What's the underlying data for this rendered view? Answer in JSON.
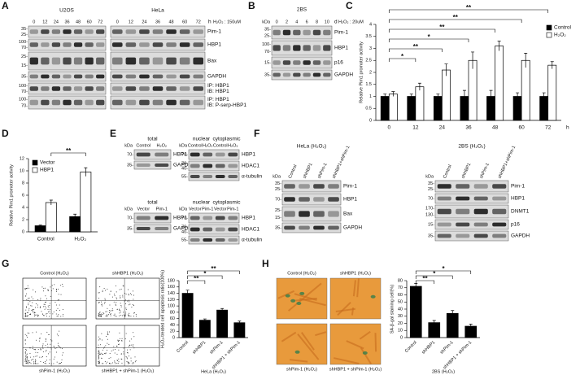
{
  "panel_labels": [
    "A",
    "B",
    "C",
    "D",
    "E",
    "F",
    "G",
    "H"
  ],
  "blots": {
    "A": {
      "unit": "h",
      "treatment": "H₂O₂ : 150uM",
      "groups": [
        {
          "name": "U2OS",
          "lanes": [
            "0",
            "12",
            "24",
            "36",
            "48",
            "60",
            "72"
          ]
        },
        {
          "name": "HeLa",
          "lanes": [
            "0",
            "12",
            "24",
            "36",
            "48",
            "60",
            "72"
          ]
        }
      ],
      "rows": [
        {
          "label": [
            "Pim-1"
          ],
          "kda": [
            "35-",
            "25-"
          ]
        },
        {
          "label": [
            "HBP1"
          ],
          "kda": [
            "100-",
            "70-"
          ]
        },
        {
          "label": [
            "Bax"
          ],
          "kda": [
            "25-",
            "15-"
          ]
        },
        {
          "label": [
            "GAPDH"
          ],
          "kda": [
            "35-"
          ]
        },
        {
          "label": [
            "IP: HBP1",
            "IB: HBP1"
          ],
          "kda": [
            "100-",
            "70-"
          ]
        },
        {
          "label": [
            "IP: HBP1",
            "IB: P-serp-HBP1"
          ],
          "kda": [
            "100-",
            "70-"
          ]
        }
      ]
    },
    "B": {
      "header": "2BS",
      "kda_label": "kDa",
      "unit": "d",
      "treatment": "H₂O₂ : 20uM",
      "lanes": [
        "0",
        "2",
        "4",
        "6",
        "8",
        "10"
      ],
      "rows": [
        {
          "label": [
            "Pim-1"
          ],
          "kda": [
            "35-",
            "25-"
          ]
        },
        {
          "label": [
            "HBP1"
          ],
          "kda": [
            "100-",
            "70-"
          ]
        },
        {
          "label": [
            "p16"
          ],
          "kda": [
            "15-"
          ]
        },
        {
          "label": [
            "GAPDH"
          ],
          "kda": [
            "35-"
          ]
        }
      ]
    },
    "E": [
      {
        "header": "total",
        "kda_label": "kDa",
        "lanes": [
          "Control",
          "H₂O₂"
        ],
        "rows": [
          {
            "label": [
              "HBP1"
            ],
            "kda": [
              "70-"
            ]
          },
          {
            "label": [
              "GAPDH"
            ],
            "kda": [
              "35-"
            ]
          }
        ]
      },
      {
        "headers": [
          "nuclear",
          "cytoplasmic"
        ],
        "kda_label": "kDa",
        "lanes": [
          "Control",
          "H₂O₂",
          "Control",
          "H₂O₂"
        ],
        "rows": [
          {
            "label": [
              "HBP1"
            ],
            "kda": [
              "70-"
            ]
          },
          {
            "label": [
              "HDAC1"
            ],
            "kda": [
              "70-",
              "40-"
            ]
          },
          {
            "label": [
              "α-tubulin"
            ],
            "kda": [
              "55-"
            ]
          }
        ]
      },
      {
        "header": "total",
        "kda_label": "kDa",
        "lanes": [
          "Vector",
          "Pim-1"
        ],
        "rows": [
          {
            "label": [
              "HBP1"
            ],
            "kda": [
              "70-"
            ]
          },
          {
            "label": [
              "GAPDH"
            ],
            "kda": [
              "35-"
            ]
          }
        ]
      },
      {
        "headers": [
          "nuclear",
          "cytoplasmic"
        ],
        "kda_label": "kDa",
        "lanes": [
          "Vector",
          "Pim-1",
          "Vector",
          "Pim-1"
        ],
        "rows": [
          {
            "label": [
              "HBP1"
            ],
            "kda": [
              "70-"
            ]
          },
          {
            "label": [
              "HDAC1"
            ],
            "kda": [
              "70-",
              "40-"
            ]
          },
          {
            "label": [
              "α-tubulin"
            ],
            "kda": [
              "55-"
            ]
          }
        ]
      }
    ],
    "F": [
      {
        "header": "HeLa (H₂O₂)",
        "kda_label": "kDa",
        "lanes": [
          "Control",
          "shHBP1",
          "shPim-1",
          "shHBP1+shPim-1"
        ],
        "rows": [
          {
            "label": [
              "Pim-1"
            ],
            "kda": [
              "35-",
              "25-"
            ]
          },
          {
            "label": [
              "HBP1"
            ],
            "kda": [
              "70-"
            ]
          },
          {
            "label": [
              "Bax"
            ],
            "kda": [
              "25-",
              "15-"
            ]
          },
          {
            "label": [
              "GAPDH"
            ],
            "kda": [
              "35-"
            ]
          }
        ]
      },
      {
        "header": "2BS (H₂O₂)",
        "kda_label": "kDa",
        "lanes": [
          "Control",
          "shHBP1",
          "shPim-1",
          "shHBP1+shPim-1"
        ],
        "rows": [
          {
            "label": [
              "Pim-1"
            ],
            "kda": [
              "35-",
              "25-"
            ]
          },
          {
            "label": [
              "HBP1"
            ],
            "kda": [
              "70-"
            ]
          },
          {
            "label": [
              "DNMT1"
            ],
            "kda": [
              "170-",
              "130-"
            ]
          },
          {
            "label": [
              "p16"
            ],
            "kda": [
              "15-"
            ]
          },
          {
            "label": [
              "GAPDH"
            ],
            "kda": [
              "35-"
            ]
          }
        ]
      }
    ]
  },
  "flow": {
    "titles": [
      "Control (H₂O₂)",
      "shHBP1 (H₂O₂)",
      "shPim-1 (H₂O₂)",
      "shHBP1 + shPim-1 (H₂O₂)"
    ]
  },
  "microscopy": {
    "titles": [
      "Control (H₂O₂)",
      "shHBP1 (H₂O₂)",
      "shPim-1 (H₂O₂)",
      "shHBP1 + shPim-1 (H₂O₂)"
    ]
  },
  "chart_data": [
    {
      "type": "bar",
      "ylabel": "Relative Pim1 promoter activity",
      "categories": [
        "0",
        "12",
        "24",
        "36",
        "48",
        "60",
        "72"
      ],
      "x_unit": "h",
      "series": [
        {
          "name": "Control",
          "color": "#000000",
          "values": [
            1,
            1,
            1,
            1,
            1,
            1,
            1
          ],
          "errors": [
            0.1,
            0.1,
            0.1,
            0.25,
            0.25,
            0.15,
            0.15
          ]
        },
        {
          "name": "H₂O₂",
          "color": "#ffffff",
          "values": [
            1.1,
            1.4,
            2.1,
            2.5,
            3.1,
            2.5,
            2.3
          ],
          "errors": [
            0.1,
            0.15,
            0.25,
            0.35,
            0.2,
            0.3,
            0.15
          ]
        }
      ],
      "ylim": [
        0,
        4
      ],
      "yticks": [
        0,
        0.5,
        1,
        1.5,
        2,
        2.5,
        3,
        3.5,
        4
      ],
      "significance": [
        null,
        "*",
        "**",
        "*",
        "**",
        "**",
        "**"
      ]
    },
    {
      "type": "bar",
      "ylabel": "Relative Pim1 promoter activity",
      "categories": [
        "Control",
        "H₂O₂"
      ],
      "series": [
        {
          "name": "Vector",
          "color": "#000000",
          "values": [
            1,
            2.5
          ],
          "errors": [
            0.1,
            0.4
          ]
        },
        {
          "name": "HBP1",
          "color": "#ffffff",
          "values": [
            4.8,
            9.8
          ],
          "errors": [
            0.4,
            0.7
          ]
        }
      ],
      "ylim": [
        0,
        12
      ],
      "yticks": [
        0,
        2,
        4,
        6,
        8,
        10,
        12
      ],
      "significance": [
        "**"
      ]
    },
    {
      "type": "bar",
      "ylabel": "H₂O₂-treated cell apoptosis ratio(100%)",
      "categories": [
        "Control",
        "shHBP1",
        "shPim-1",
        "shHBP1 + shPim-1"
      ],
      "values": [
        140,
        55,
        87,
        47
      ],
      "errors": [
        10,
        4,
        5,
        5
      ],
      "color": "#000000",
      "ylim": [
        0,
        180
      ],
      "yticks": [
        0,
        20,
        40,
        60,
        80,
        100,
        120,
        140,
        160,
        180
      ],
      "xlabel": "HeLa (H₂O₂)",
      "significance": [
        null,
        "**",
        "*",
        "**"
      ]
    },
    {
      "type": "bar",
      "ylabel": "SA-β-gal staining cell(%)",
      "categories": [
        "Control",
        "shHBP1",
        "shPim-1",
        "shHBP1 + shPim-1"
      ],
      "values": [
        72,
        21,
        34,
        16
      ],
      "errors": [
        4,
        3,
        4,
        3
      ],
      "color": "#000000",
      "ylim": [
        0,
        80
      ],
      "yticks": [
        0,
        10,
        20,
        30,
        40,
        50,
        60,
        70,
        80
      ],
      "xlabel": "2BS (H₂O₂)",
      "significance": [
        null,
        "**",
        "*",
        "*"
      ]
    }
  ]
}
